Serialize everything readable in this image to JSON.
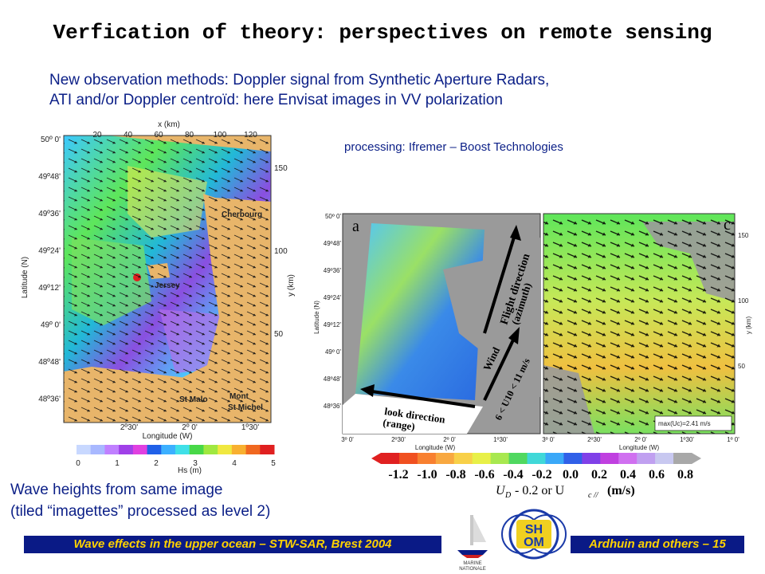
{
  "slide": {
    "title": "Verfication of theory: perspectives on remote sensing",
    "subtitle_line1": "New observation methods: Doppler signal from Synthetic Aperture Radars,",
    "subtitle_line2": "ATI and/or Doppler centroïd: here Envisat images in VV polarization",
    "processing": "processing: Ifremer – Boost Technologies",
    "caption_line1": "Wave heights from same image",
    "caption_line2": "(tiled “imagettes” processed as level 2)",
    "footer_left": "Wave effects in the upper ocean – STW-SAR, Brest 2004",
    "footer_right": "Ardhuin and others – 15"
  },
  "left_map": {
    "xkm_label": "x (km)",
    "xkm_ticks": [
      "20",
      "40",
      "60",
      "80",
      "100",
      "120"
    ],
    "ykm_label": "y (km)",
    "ykm_ticks": [
      "150",
      "100",
      "50"
    ],
    "lat_label": "Latitude (N)",
    "lat_ticks": [
      "50º 0'",
      "49º48'",
      "49º36'",
      "49º24'",
      "49º12'",
      "49º 0'",
      "48º48'",
      "48º36'"
    ],
    "lon_label": "Longitude (W)",
    "lon_ticks": [
      "2º30'",
      "2º 0'",
      "1º30'"
    ],
    "places": [
      "Cherbourg",
      "Jersey",
      "St Malo",
      "Mont",
      "St Michel"
    ],
    "colorbar_label": "Hs (m)",
    "colorbar_ticks": [
      "0",
      "1",
      "2",
      "3",
      "4",
      "5"
    ]
  },
  "panel_a": {
    "letter": "a",
    "lat_label": "Latitude (N)",
    "lat_ticks": [
      "50º 0'",
      "49º48'",
      "49º36'",
      "49º24'",
      "49º12'",
      "49º 0'",
      "48º48'",
      "48º36'"
    ],
    "lon_label": "Longitude (W)",
    "lon_ticks": [
      "3º 0'",
      "2º30'",
      "2º 0'",
      "1º30'"
    ],
    "flight_line1": "Flight direction",
    "flight_line2": "(azimuth)",
    "wind_label": "Wind",
    "wind_speed": "6 < U10 < 11 m/s",
    "look_line1": "look direction",
    "look_line2": "(range)"
  },
  "panel_c": {
    "letter": "c",
    "ykm_label": "y (km)",
    "ykm_ticks": [
      "150",
      "100",
      "50"
    ],
    "lon_label": "Longitude (W)",
    "lon_ticks": [
      "3º 0'",
      "2º30'",
      "2º 0'",
      "1º30'",
      "1º 0'"
    ],
    "max_label": "max(Uc)=2.41 m/s"
  },
  "velocity_colorbar": {
    "ticks": [
      "-1.2",
      "-1.0",
      "-0.8",
      "-0.6",
      "-0.4",
      "-0.2",
      "0.0",
      "0.2",
      "0.4",
      "0.6",
      "0.8"
    ],
    "label_ud": "U",
    "label_ud_sub": "D",
    "label_mid": "- 0.2 or U",
    "label_uc_sub": "c //",
    "label_unit": "(m/s)"
  },
  "logos": {
    "marine_line1": "MARINE",
    "marine_line2": "NATIONALE",
    "shom_top": "SH",
    "shom_bottom": "OM"
  },
  "colors": {
    "title_text": "#000000",
    "body_text": "#0b1f87",
    "footer_bg": "#0a1a86",
    "footer_text": "#ffd200",
    "land": "#e8b56a",
    "land_grey": "#9a9a9a"
  }
}
